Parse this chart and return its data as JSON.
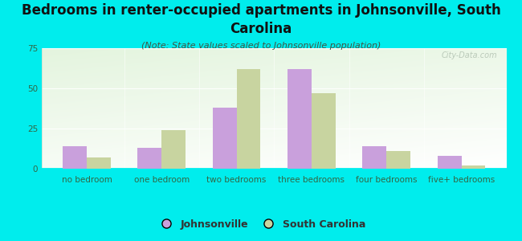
{
  "title": "Bedrooms in renter-occupied apartments in Johnsonville, South\nCarolina",
  "subtitle": "(Note: State values scaled to Johnsonville population)",
  "categories": [
    "no bedroom",
    "one bedroom",
    "two bedrooms",
    "three bedrooms",
    "four bedrooms",
    "five+ bedrooms"
  ],
  "johnsonville": [
    14,
    13,
    38,
    62,
    14,
    8
  ],
  "south_carolina": [
    7,
    24,
    62,
    47,
    11,
    2
  ],
  "bar_color_j": "#c9a0dc",
  "bar_color_sc": "#c8d4a0",
  "background_outer": "#00eded",
  "ylim": [
    0,
    75
  ],
  "yticks": [
    0,
    25,
    50,
    75
  ],
  "legend_j": "Johnsonville",
  "legend_sc": "South Carolina",
  "watermark": "City-Data.com",
  "title_fontsize": 12,
  "subtitle_fontsize": 8,
  "tick_fontsize": 7.5,
  "legend_fontsize": 9
}
